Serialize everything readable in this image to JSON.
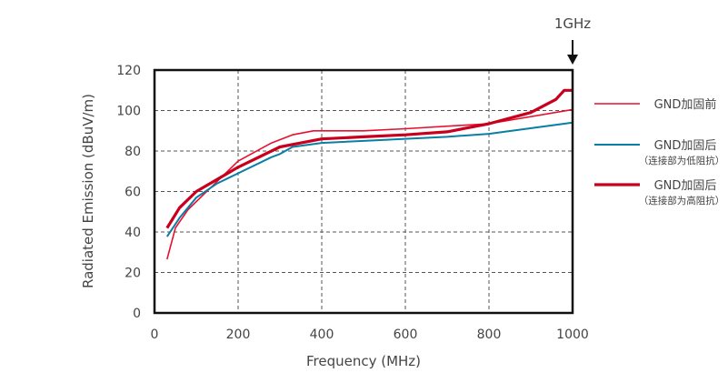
{
  "chart_data": {
    "type": "line",
    "xlabel": "Frequency (MHz)",
    "ylabel": "Radiated Emission (dBuV/m)",
    "xlim": [
      0,
      1000
    ],
    "ylim": [
      0,
      120
    ],
    "xticks": [
      0,
      200,
      400,
      600,
      800,
      1000
    ],
    "yticks": [
      0,
      20,
      40,
      60,
      80,
      100,
      120
    ],
    "grid": true,
    "annotation": "1GHz",
    "annotation_x": 1000,
    "legend_position": "right",
    "series": [
      {
        "name": "GND加固前",
        "sub": "",
        "color": "#e8102f",
        "width": 1.6,
        "x": [
          30,
          50,
          80,
          120,
          200,
          280,
          330,
          380,
          500,
          600,
          800,
          1000
        ],
        "y": [
          26.5,
          42,
          51,
          59,
          75,
          84,
          88,
          90,
          90,
          91,
          93.5,
          100.5
        ]
      },
      {
        "name": "GND加固后",
        "sub": "（连接部为低阻抗）",
        "color": "#0a7ea4",
        "width": 2,
        "x": [
          30,
          60,
          100,
          150,
          200,
          280,
          300,
          330,
          400,
          500,
          700,
          800,
          1000
        ],
        "y": [
          37.7,
          47,
          57,
          64,
          69,
          77,
          78.5,
          82,
          84,
          85,
          87,
          88.5,
          94
        ]
      },
      {
        "name": "GND加固后",
        "sub": "（连接部为高阻抗）",
        "color": "#c8001e",
        "width": 3.2,
        "x": [
          30,
          60,
          100,
          150,
          200,
          300,
          400,
          500,
          600,
          700,
          800,
          900,
          960,
          980,
          1000
        ],
        "y": [
          42,
          52,
          60,
          66,
          72,
          82,
          86,
          87,
          88,
          89.5,
          93.5,
          99,
          105.5,
          110,
          110
        ]
      }
    ]
  }
}
